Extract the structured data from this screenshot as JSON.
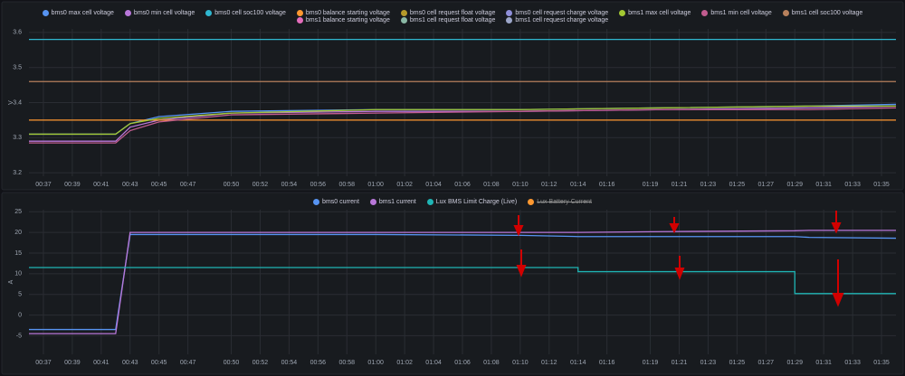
{
  "chart_data": [
    {
      "type": "line",
      "y_label": "V",
      "x": [
        "00:36",
        "00:42",
        "00:43",
        "00:45",
        "00:50",
        "01:00",
        "01:10",
        "01:20",
        "01:30",
        "01:36"
      ],
      "xlim": [
        "00:36",
        "01:36"
      ],
      "xticks": [
        "00:37",
        "00:39",
        "00:41",
        "00:43",
        "00:45",
        "00:47",
        "00:50",
        "00:52",
        "00:54",
        "00:56",
        "00:58",
        "01:00",
        "01:02",
        "01:04",
        "01:06",
        "01:08",
        "01:10",
        "01:12",
        "01:14",
        "01:16",
        "01:19",
        "01:21",
        "01:23",
        "01:25",
        "01:27",
        "01:29",
        "01:31",
        "01:33",
        "01:35"
      ],
      "ylim": [
        3.19,
        3.61
      ],
      "yticks": [
        3.2,
        3.3,
        3.4,
        3.5,
        3.6
      ],
      "grid": true,
      "legend": "top",
      "series": [
        {
          "name": "bms0 max cell voltage",
          "color": "#5794f2",
          "values": [
            3.31,
            3.31,
            3.34,
            3.36,
            3.375,
            3.38,
            3.38,
            3.385,
            3.39,
            3.395
          ]
        },
        {
          "name": "bms0 min cell voltage",
          "color": "#b877d9",
          "values": [
            3.29,
            3.29,
            3.33,
            3.35,
            3.37,
            3.375,
            3.375,
            3.38,
            3.385,
            3.39
          ]
        },
        {
          "name": "bms0 cell soc100 voltage",
          "color": "#2fb7d0",
          "values": [
            3.58,
            3.58,
            3.58,
            3.58,
            3.58,
            3.58,
            3.58,
            3.58,
            3.58,
            3.58
          ]
        },
        {
          "name": "bms0 balance starting voltage",
          "color": "#ff9830",
          "values": [
            3.35,
            3.35,
            3.35,
            3.35,
            3.35,
            3.35,
            3.35,
            3.35,
            3.35,
            3.35
          ]
        },
        {
          "name": "bms0 cell request float voltage",
          "color": "#b59a2a",
          "values": [
            null,
            null,
            null,
            null,
            null,
            null,
            null,
            null,
            null,
            null
          ]
        },
        {
          "name": "bms0 cell request charge voltage",
          "color": "#8f8fd9",
          "values": [
            null,
            null,
            null,
            null,
            null,
            null,
            null,
            null,
            null,
            null
          ]
        },
        {
          "name": "bms1 max cell voltage",
          "color": "#a3c832",
          "values": [
            3.31,
            3.31,
            3.34,
            3.355,
            3.37,
            3.38,
            3.38,
            3.385,
            3.39,
            3.39
          ]
        },
        {
          "name": "bms1 min cell voltage",
          "color": "#c15c8f",
          "values": [
            3.285,
            3.285,
            3.32,
            3.345,
            3.365,
            3.37,
            3.375,
            3.38,
            3.38,
            3.385
          ]
        },
        {
          "name": "bms1 cell soc100 voltage",
          "color": "#b7805c",
          "values": [
            3.46,
            3.46,
            3.46,
            3.46,
            3.46,
            3.46,
            3.46,
            3.46,
            3.46,
            3.46
          ]
        },
        {
          "name": "bms1 balance starting voltage",
          "color": "#e36dbb",
          "values": [
            null,
            null,
            null,
            null,
            null,
            null,
            null,
            null,
            null,
            null
          ]
        },
        {
          "name": "bms1 cell request float voltage",
          "color": "#8ab8a5",
          "values": [
            null,
            null,
            null,
            null,
            null,
            null,
            null,
            null,
            null,
            null
          ]
        },
        {
          "name": "bms1 cell request charge voltage",
          "color": "#9ca6c9",
          "values": [
            null,
            null,
            null,
            null,
            null,
            null,
            null,
            null,
            null,
            null
          ]
        }
      ]
    },
    {
      "type": "line",
      "y_label": "A",
      "x": [
        "00:36",
        "00:42",
        "00:43",
        "00:50",
        "01:00",
        "01:10",
        "01:14",
        "01:20",
        "01:29",
        "01:30",
        "01:36"
      ],
      "xlim": [
        "00:36",
        "01:36"
      ],
      "xticks": [
        "00:37",
        "00:39",
        "00:41",
        "00:43",
        "00:45",
        "00:47",
        "00:50",
        "00:52",
        "00:54",
        "00:56",
        "00:58",
        "01:00",
        "01:02",
        "01:04",
        "01:06",
        "01:08",
        "01:10",
        "01:12",
        "01:14",
        "01:16",
        "01:19",
        "01:21",
        "01:23",
        "01:25",
        "01:27",
        "01:29",
        "01:31",
        "01:33",
        "01:35"
      ],
      "ylim": [
        -9.5,
        25.5
      ],
      "yticks": [
        -5,
        0,
        5,
        10,
        15,
        20,
        25
      ],
      "grid": true,
      "legend": "top",
      "series": [
        {
          "name": "bms0 current",
          "color": "#5794f2",
          "values": [
            -3.5,
            -3.5,
            19.5,
            19.5,
            19.5,
            19.3,
            19,
            19,
            19,
            18.8,
            18.6
          ]
        },
        {
          "name": "bms1 current",
          "color": "#b877d9",
          "values": [
            -4.5,
            -4.5,
            20,
            20,
            20,
            20,
            20,
            20.2,
            20.4,
            20.5,
            20.5
          ]
        },
        {
          "name": "Lux BMS Limit Charge (Live)",
          "color": "#1fb5b5",
          "step": true,
          "values": [
            11.5,
            11.5,
            11.5,
            11.5,
            11.5,
            11.5,
            10.5,
            10.5,
            5.2,
            5.2,
            5.2
          ]
        },
        {
          "name": "Lux Battery Current",
          "color": "#ff9830",
          "hidden": true,
          "values": [
            null,
            null,
            null,
            null,
            null,
            null,
            null,
            null,
            null,
            null,
            null
          ]
        }
      ]
    }
  ]
}
